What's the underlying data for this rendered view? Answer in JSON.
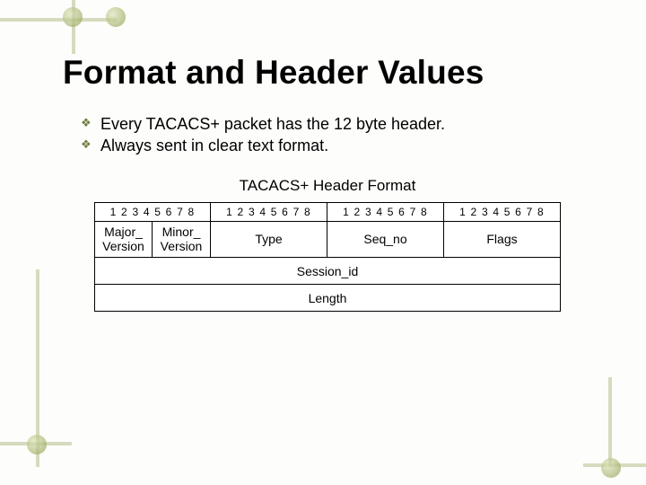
{
  "title": "Format and Header Values",
  "bullets": [
    "Every TACACS+ packet has the 12 byte header.",
    "Always sent in clear text format."
  ],
  "subheading": "TACACS+ Header Format",
  "diagram": {
    "bit_label": "1 2 3 4 5 6 7 8",
    "row1_fields": [
      {
        "label": "Major_\nVersion",
        "bits": 8
      },
      {
        "label": "Minor_\nVersion",
        "bits": 8
      },
      {
        "label": "Type",
        "bits": 16
      },
      {
        "label": "Seq_no",
        "bits": 16
      },
      {
        "label": "Flags",
        "bits": 16
      }
    ],
    "full_rows": [
      "Session_id",
      "Length"
    ],
    "colors": {
      "border": "#000000",
      "background": "#ffffff",
      "accent": "#8a9a4a"
    }
  }
}
